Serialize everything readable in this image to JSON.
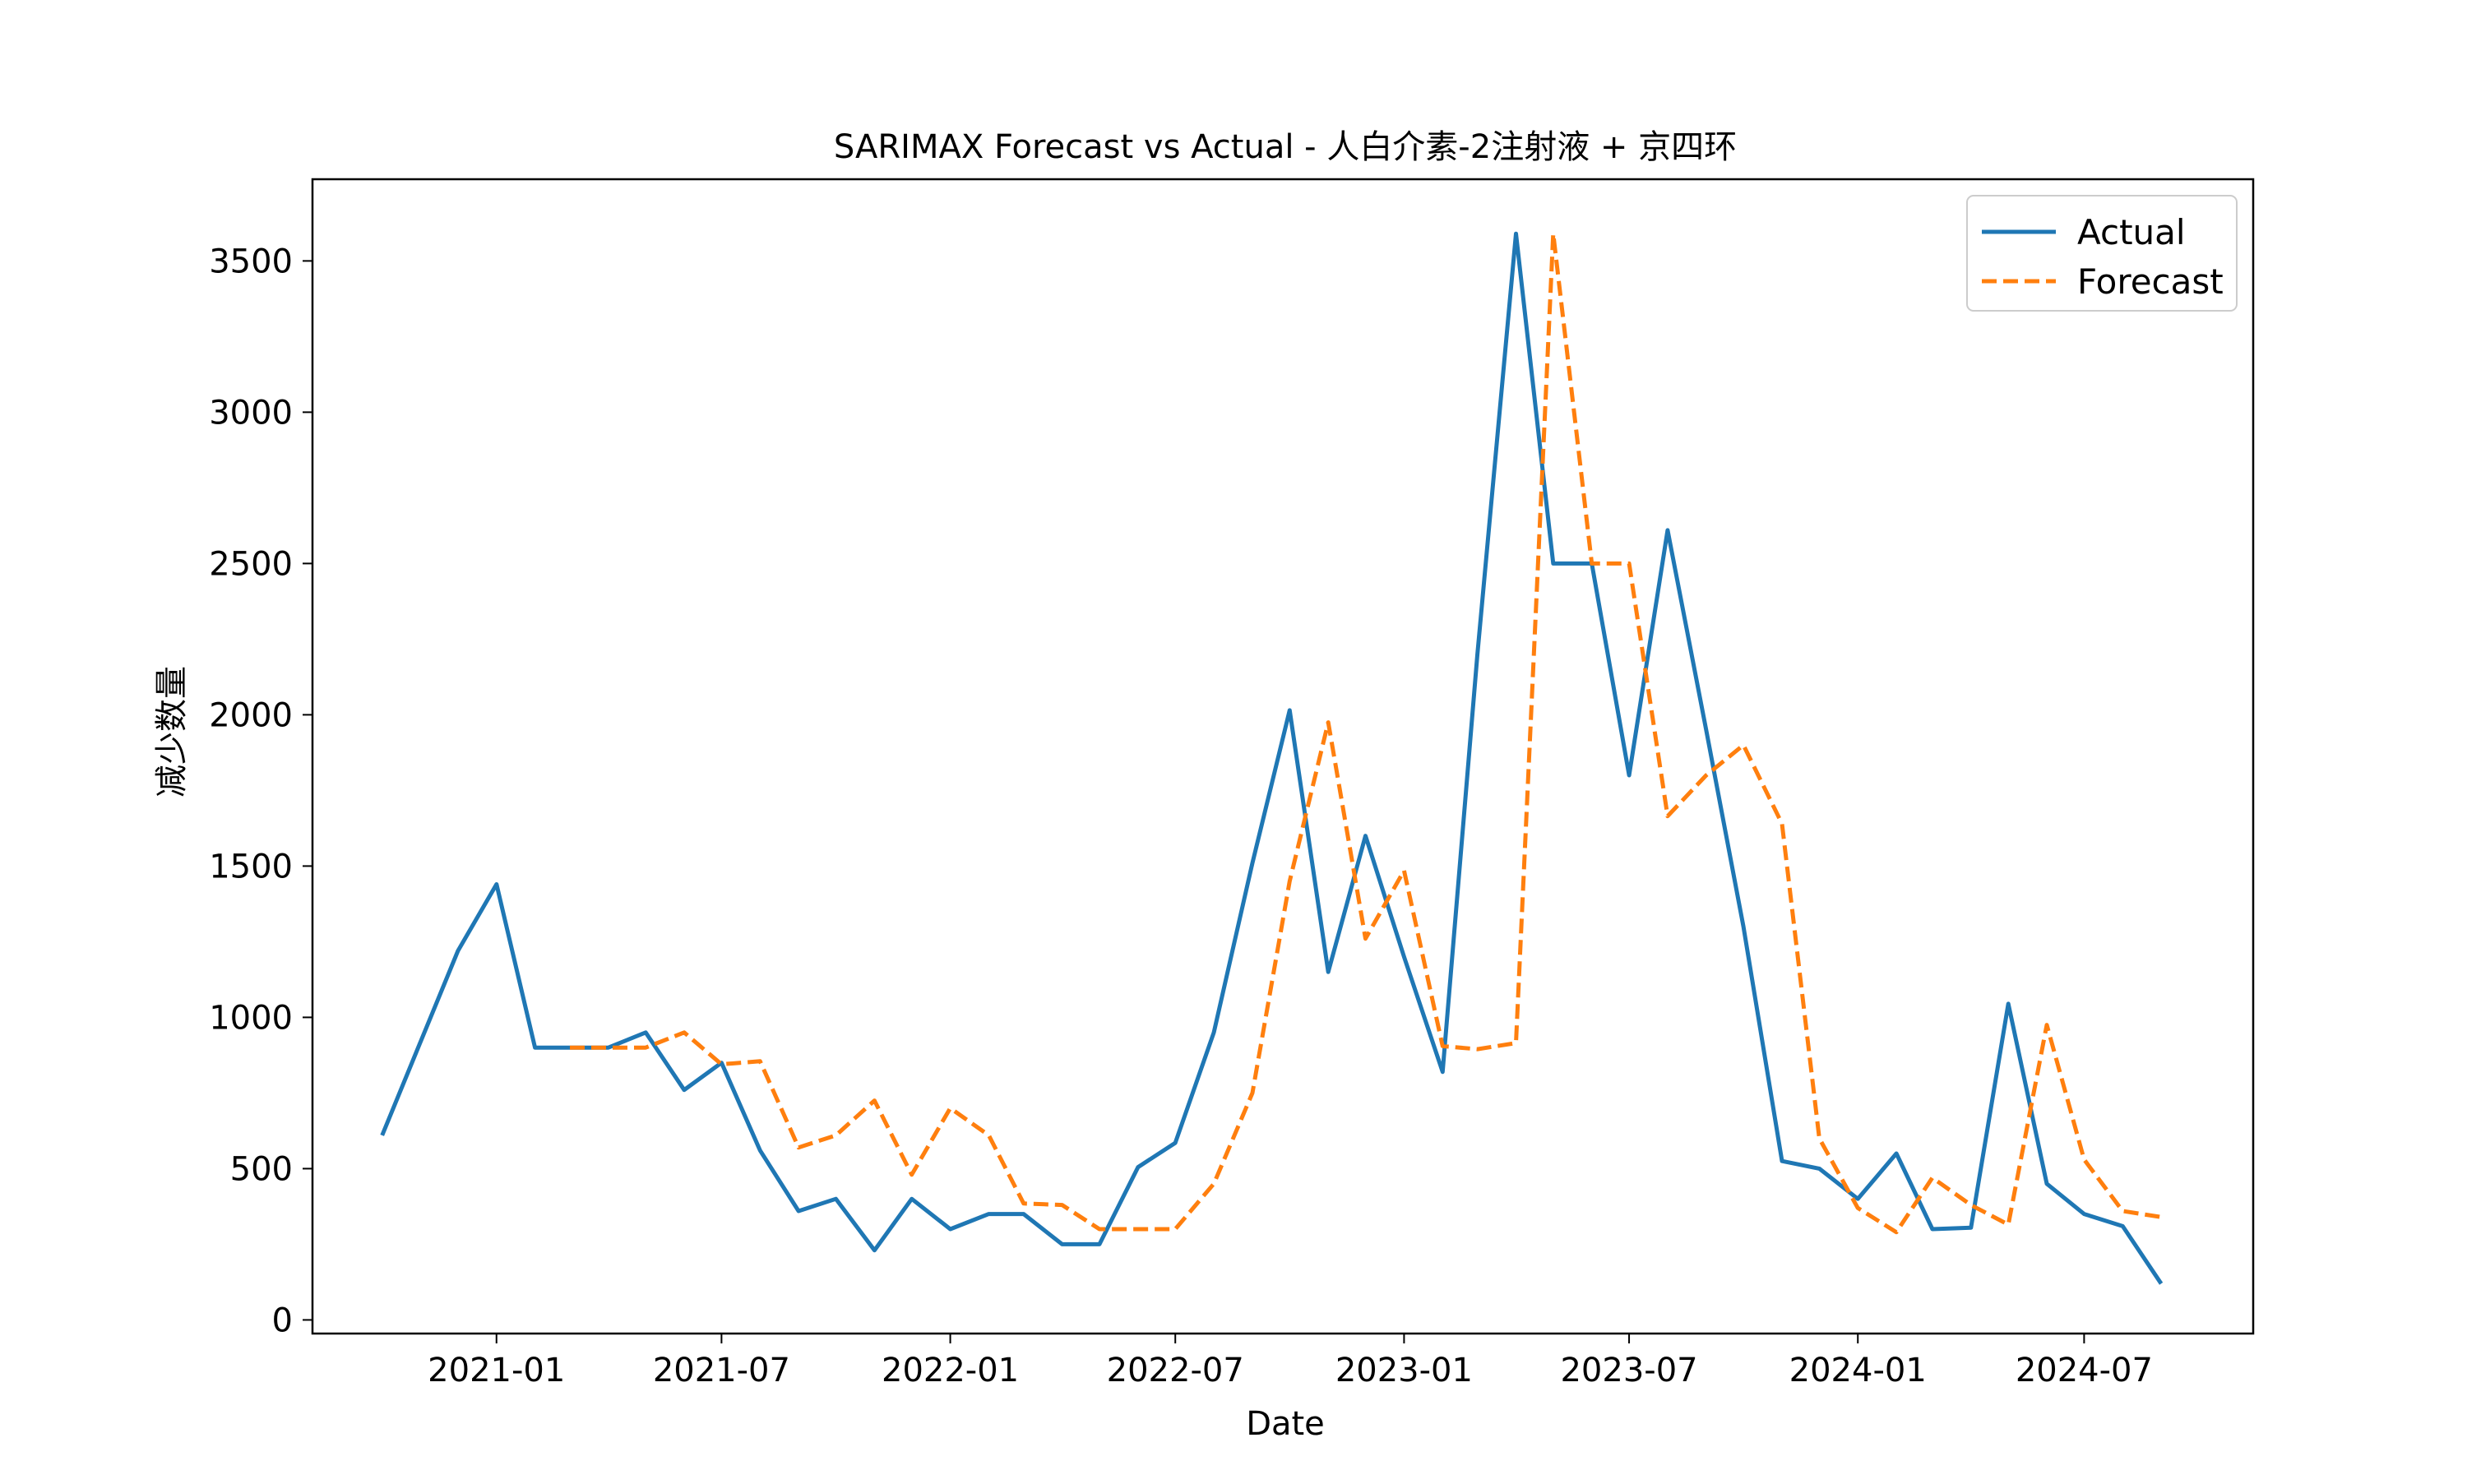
{
  "chart_data": {
    "type": "line",
    "title": "SARIMAX Forecast vs Actual - 人白介素-2注射液 + 京四环",
    "xlabel": "Date",
    "ylabel": "减少数量",
    "ylim": [
      -45,
      3770
    ],
    "yticks": [
      0,
      500,
      1000,
      1500,
      2000,
      2500,
      3000,
      3500
    ],
    "xlim": [
      "2020-08-06",
      "2024-11-14"
    ],
    "xticks": [
      "2021-01",
      "2021-07",
      "2022-01",
      "2022-07",
      "2023-01",
      "2023-07",
      "2024-01",
      "2024-07"
    ],
    "grid": false,
    "legend_position": "top-right",
    "x": [
      "2020-10",
      "2020-11",
      "2020-12",
      "2021-01",
      "2021-02",
      "2021-03",
      "2021-04",
      "2021-05",
      "2021-06",
      "2021-07",
      "2021-08",
      "2021-09",
      "2021-10",
      "2021-11",
      "2021-12",
      "2022-01",
      "2022-02",
      "2022-03",
      "2022-04",
      "2022-05",
      "2022-06",
      "2022-07",
      "2022-08",
      "2022-09",
      "2022-10",
      "2022-11",
      "2022-12",
      "2023-01",
      "2023-02",
      "2023-03",
      "2023-04",
      "2023-05",
      "2023-06",
      "2023-07",
      "2023-08",
      "2023-09",
      "2023-10",
      "2023-11",
      "2023-12",
      "2024-01",
      "2024-02",
      "2024-03",
      "2024-04",
      "2024-05",
      "2024-06",
      "2024-07",
      "2024-08",
      "2024-09"
    ],
    "series": [
      {
        "name": "Actual",
        "color": "#1f77b4",
        "style": "solid",
        "values": [
          610,
          920,
          1220,
          1440,
          900,
          900,
          900,
          950,
          760,
          850,
          560,
          360,
          400,
          230,
          400,
          300,
          350,
          350,
          250,
          250,
          505,
          585,
          950,
          1510,
          2015,
          1150,
          1600,
          1200,
          820,
          2200,
          3590,
          2500,
          2500,
          1800,
          2610,
          1950,
          1300,
          525,
          500,
          400,
          550,
          300,
          305,
          1045,
          450,
          350,
          310,
          120
        ]
      },
      {
        "name": "Forecast",
        "color": "#ff7f0e",
        "style": "dashed",
        "values": [
          null,
          null,
          null,
          null,
          null,
          900,
          900,
          900,
          950,
          845,
          855,
          570,
          610,
          725,
          480,
          700,
          610,
          385,
          380,
          300,
          300,
          300,
          450,
          750,
          1450,
          1975,
          1260,
          1485,
          905,
          895,
          915,
          3590,
          2500,
          2500,
          1665,
          1800,
          1900,
          1640,
          600,
          370,
          290,
          470,
          380,
          315,
          975,
          530,
          360,
          340
        ]
      }
    ]
  }
}
